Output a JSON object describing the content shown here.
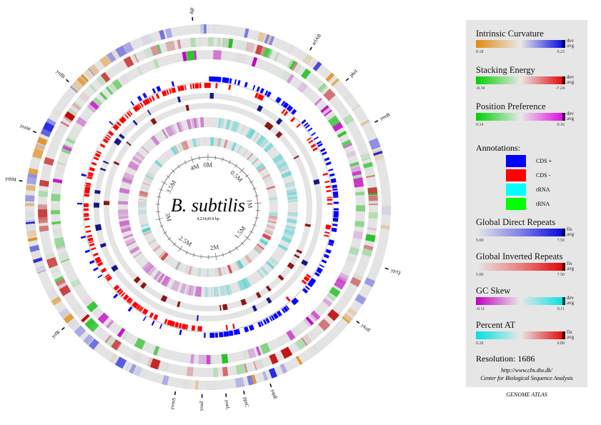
{
  "organism": "B. subtilis",
  "genome_size": "4,214,814 bp",
  "scale_labels": [
    "0M",
    "0.5M",
    "1M",
    "1.5M",
    "2M",
    "2.5M",
    "3M",
    "3.5M",
    "4M"
  ],
  "genes": [
    "dfp",
    "srfAB",
    "phrI",
    "yeeB",
    "yjcQ",
    "ykuE",
    "yqaE",
    "ppsC",
    "yoeL",
    "yoaZ",
    "yvrnS",
    "yrfR",
    "yrhM",
    "yraW",
    "yrdB"
  ],
  "legend": {
    "scales": [
      {
        "title": "Intrinsic Curvature",
        "min": "0.18",
        "max": "0.23",
        "flag1": "dev",
        "flag2": "avg",
        "colors": [
          "#e08a10",
          "#e8e8e8",
          "#0000e0"
        ],
        "end": "#000060"
      },
      {
        "title": "Stacking Energy",
        "min": "-8.34",
        "max": "-7.24",
        "flag1": "dev",
        "flag2": "avg",
        "colors": [
          "#00d000",
          "#e8e8e8",
          "#e00000"
        ],
        "end": "#400000"
      },
      {
        "title": "Position Preference",
        "min": "0.14",
        "max": "0.16",
        "flag1": "dev",
        "flag2": "avg",
        "colors": [
          "#00d000",
          "#e8e8e8",
          "#e000e0"
        ],
        "end": "#400040"
      }
    ],
    "annotations_title": "Annotations:",
    "annotations": [
      {
        "label": "CDS +",
        "color": "#0000ff"
      },
      {
        "label": "CDS -",
        "color": "#ff0000"
      },
      {
        "label": "rRNA",
        "color": "#00ffff"
      },
      {
        "label": "tRNA",
        "color": "#00ff00"
      }
    ],
    "scales2": [
      {
        "title": "Global Direct Repeats",
        "min": "5.00",
        "max": "7.50",
        "flag1": "fix",
        "flag2": "avg",
        "colors": [
          "#e8e8e8",
          "#8080e8",
          "#0000e0"
        ],
        "end": "#000040"
      },
      {
        "title": "Global Inverted Repeats",
        "min": "5.00",
        "max": "7.50",
        "flag1": "fix",
        "flag2": "avg",
        "colors": [
          "#e8e8e8",
          "#e88080",
          "#e00000"
        ],
        "end": "#400000"
      },
      {
        "title": "GC Skew",
        "min": "-0.11",
        "max": "0.11",
        "flag1": "dev",
        "flag2": "avg",
        "colors": [
          "#c000c0",
          "#e8e8e8",
          "#00e0e0"
        ],
        "end": "#004040"
      },
      {
        "title": "Percent AT",
        "min": "0.20",
        "max": "0.80",
        "flag1": "fix",
        "flag2": "avg",
        "colors": [
          "#00e0e0",
          "#e8e8e8",
          "#e00000"
        ],
        "end": "#400000"
      }
    ],
    "resolution": "Resolution: 1686",
    "url": "http://www.cbs.dtu.dk/",
    "center": "Center for Biological Sequence Analysis"
  },
  "footer": "GENOME ATLAS"
}
